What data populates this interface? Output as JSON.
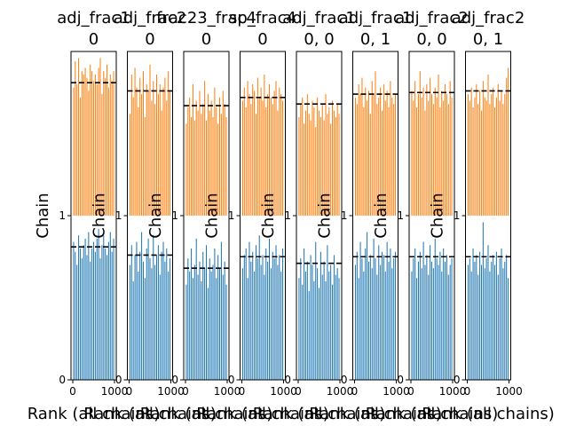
{
  "chart_data": {
    "type": "bar",
    "description_kind": "rank plot (trace rank histograms), two chains stacked per panel",
    "xlim": [
      0,
      1000
    ],
    "ylim": [
      0,
      2
    ],
    "y_ticks": [
      "0",
      "1"
    ],
    "x_ticks": [
      "0",
      "1000"
    ],
    "ylabel": "Chain",
    "xlabel": "Rank (all chains)",
    "reference_line_style": "dashed",
    "series_colors": [
      "#1f77b4",
      "#ff7f0e"
    ],
    "panels": [
      {
        "title_line1": "adj_frac1",
        "title_line2": "0",
        "chain_0": [
          0.84,
          0.78,
          0.7,
          0.88,
          0.8,
          0.74,
          0.82,
          0.86,
          0.76,
          0.9,
          0.72,
          0.8,
          0.84,
          0.78,
          0.86,
          0.92,
          0.74,
          0.82,
          0.88,
          0.8,
          0.76,
          0.84,
          0.9,
          0.78,
          0.86
        ],
        "chain_1": [
          0.78,
          0.94,
          0.8,
          0.96,
          0.72,
          0.88,
          0.86,
          0.9,
          0.84,
          0.76,
          0.92,
          0.88,
          0.82,
          0.86,
          0.8,
          0.9,
          0.96,
          0.74,
          0.88,
          0.84,
          0.92,
          0.78,
          0.86,
          0.82,
          0.88
        ],
        "ref_0": 0.81,
        "ref_1": 0.81
      },
      {
        "title_line1": "adj_frac2",
        "title_line2": "0",
        "chain_0": [
          0.7,
          0.82,
          0.6,
          0.76,
          0.84,
          0.66,
          0.78,
          0.9,
          0.72,
          0.62,
          0.8,
          0.86,
          0.74,
          0.68,
          0.88,
          0.7,
          0.76,
          0.82,
          0.64,
          0.78,
          0.84,
          0.72,
          0.8,
          0.66,
          0.74
        ],
        "chain_1": [
          0.62,
          0.86,
          0.72,
          0.9,
          0.78,
          0.66,
          0.84,
          0.74,
          0.88,
          0.6,
          0.8,
          0.76,
          0.92,
          0.7,
          0.82,
          0.68,
          0.86,
          0.74,
          0.8,
          0.64,
          0.78,
          0.84,
          0.7,
          0.88,
          0.76
        ],
        "ref_0": 0.76,
        "ref_1": 0.76
      },
      {
        "title_line1": "frac23_frac4",
        "title_line2": "0",
        "chain_0": [
          0.58,
          0.74,
          0.66,
          0.8,
          0.62,
          0.7,
          0.86,
          0.64,
          0.72,
          0.6,
          0.78,
          0.68,
          0.82,
          0.56,
          0.74,
          0.66,
          0.7,
          0.8,
          0.62,
          0.76,
          0.68,
          0.84,
          0.64,
          0.72,
          0.58
        ],
        "chain_1": [
          0.56,
          0.66,
          0.72,
          0.6,
          0.8,
          0.58,
          0.7,
          0.64,
          0.76,
          0.62,
          0.68,
          0.82,
          0.58,
          0.74,
          0.64,
          0.7,
          0.6,
          0.78,
          0.66,
          0.56,
          0.72,
          0.62,
          0.76,
          0.68,
          0.6
        ],
        "ref_0": 0.68,
        "ref_1": 0.67
      },
      {
        "title_line1": "sp_frac4",
        "title_line2": "0",
        "chain_0": [
          0.68,
          0.76,
          0.8,
          0.62,
          0.84,
          0.72,
          0.78,
          0.66,
          0.82,
          0.74,
          0.88,
          0.7,
          0.76,
          0.64,
          0.8,
          0.72,
          0.86,
          0.68,
          0.78,
          0.74,
          0.82,
          0.7,
          0.76,
          0.66,
          0.8
        ],
        "chain_1": [
          0.7,
          0.78,
          0.66,
          0.82,
          0.74,
          0.68,
          0.8,
          0.76,
          0.62,
          0.84,
          0.72,
          0.78,
          0.7,
          0.86,
          0.66,
          0.74,
          0.8,
          0.72,
          0.68,
          0.76,
          0.82,
          0.64,
          0.78,
          0.74,
          0.7
        ],
        "ref_0": 0.75,
        "ref_1": 0.72
      },
      {
        "title_line1": "adj_frac1",
        "title_line2": "0, 0",
        "chain_0": [
          0.62,
          0.74,
          0.58,
          0.8,
          0.66,
          0.72,
          0.54,
          0.76,
          0.7,
          0.6,
          0.84,
          0.68,
          0.56,
          0.78,
          0.64,
          0.72,
          0.6,
          0.82,
          0.66,
          0.7,
          0.58,
          0.76,
          0.64,
          0.68,
          0.62
        ],
        "chain_1": [
          0.6,
          0.68,
          0.72,
          0.56,
          0.64,
          0.74,
          0.62,
          0.58,
          0.7,
          0.66,
          0.54,
          0.72,
          0.64,
          0.6,
          0.68,
          0.58,
          0.74,
          0.62,
          0.66,
          0.56,
          0.7,
          0.64,
          0.6,
          0.68,
          0.62
        ],
        "ref_0": 0.71,
        "ref_1": 0.68
      },
      {
        "title_line1": "adj_frac1",
        "title_line2": "0, 1",
        "chain_0": [
          0.7,
          0.78,
          0.62,
          0.84,
          0.74,
          0.66,
          0.8,
          0.9,
          0.72,
          0.76,
          0.68,
          0.86,
          0.74,
          0.64,
          0.82,
          0.7,
          0.78,
          0.76,
          0.66,
          0.84,
          0.72,
          0.8,
          0.68,
          0.74,
          0.78
        ],
        "chain_1": [
          0.72,
          0.68,
          0.8,
          0.74,
          0.84,
          0.66,
          0.78,
          0.7,
          0.76,
          0.62,
          0.82,
          0.74,
          0.88,
          0.68,
          0.72,
          0.78,
          0.64,
          0.8,
          0.7,
          0.76,
          0.66,
          0.82,
          0.72,
          0.68,
          0.74
        ],
        "ref_0": 0.75,
        "ref_1": 0.74
      },
      {
        "title_line1": "adj_frac2",
        "title_line2": "0, 0",
        "chain_0": [
          0.66,
          0.74,
          0.8,
          0.62,
          0.72,
          0.78,
          0.68,
          0.84,
          0.7,
          0.76,
          0.64,
          0.82,
          0.72,
          0.68,
          0.86,
          0.74,
          0.7,
          0.78,
          0.66,
          0.8,
          0.72,
          0.76,
          0.64,
          0.7,
          0.74
        ],
        "chain_1": [
          0.76,
          0.7,
          0.82,
          0.66,
          0.74,
          0.88,
          0.72,
          0.78,
          0.64,
          0.8,
          0.7,
          0.84,
          0.74,
          0.68,
          0.78,
          0.72,
          0.86,
          0.66,
          0.76,
          0.7,
          0.8,
          0.74,
          0.68,
          0.82,
          0.72
        ],
        "ref_0": 0.75,
        "ref_1": 0.75
      },
      {
        "title_line1": "adj_frac2",
        "title_line2": "0, 1",
        "chain_0": [
          0.7,
          0.74,
          0.66,
          0.8,
          0.72,
          0.76,
          0.64,
          0.78,
          0.7,
          0.96,
          0.68,
          0.74,
          0.82,
          0.66,
          0.72,
          0.76,
          0.7,
          0.78,
          0.64,
          0.74,
          0.8,
          0.68,
          0.72,
          0.76,
          0.62
        ],
        "chain_1": [
          0.74,
          0.7,
          0.78,
          0.66,
          0.72,
          0.8,
          0.68,
          0.76,
          0.64,
          0.82,
          0.72,
          0.7,
          0.86,
          0.68,
          0.74,
          0.78,
          0.66,
          0.72,
          0.8,
          0.7,
          0.76,
          0.68,
          0.74,
          0.84,
          0.9
        ],
        "ref_0": 0.75,
        "ref_1": 0.76
      }
    ]
  }
}
